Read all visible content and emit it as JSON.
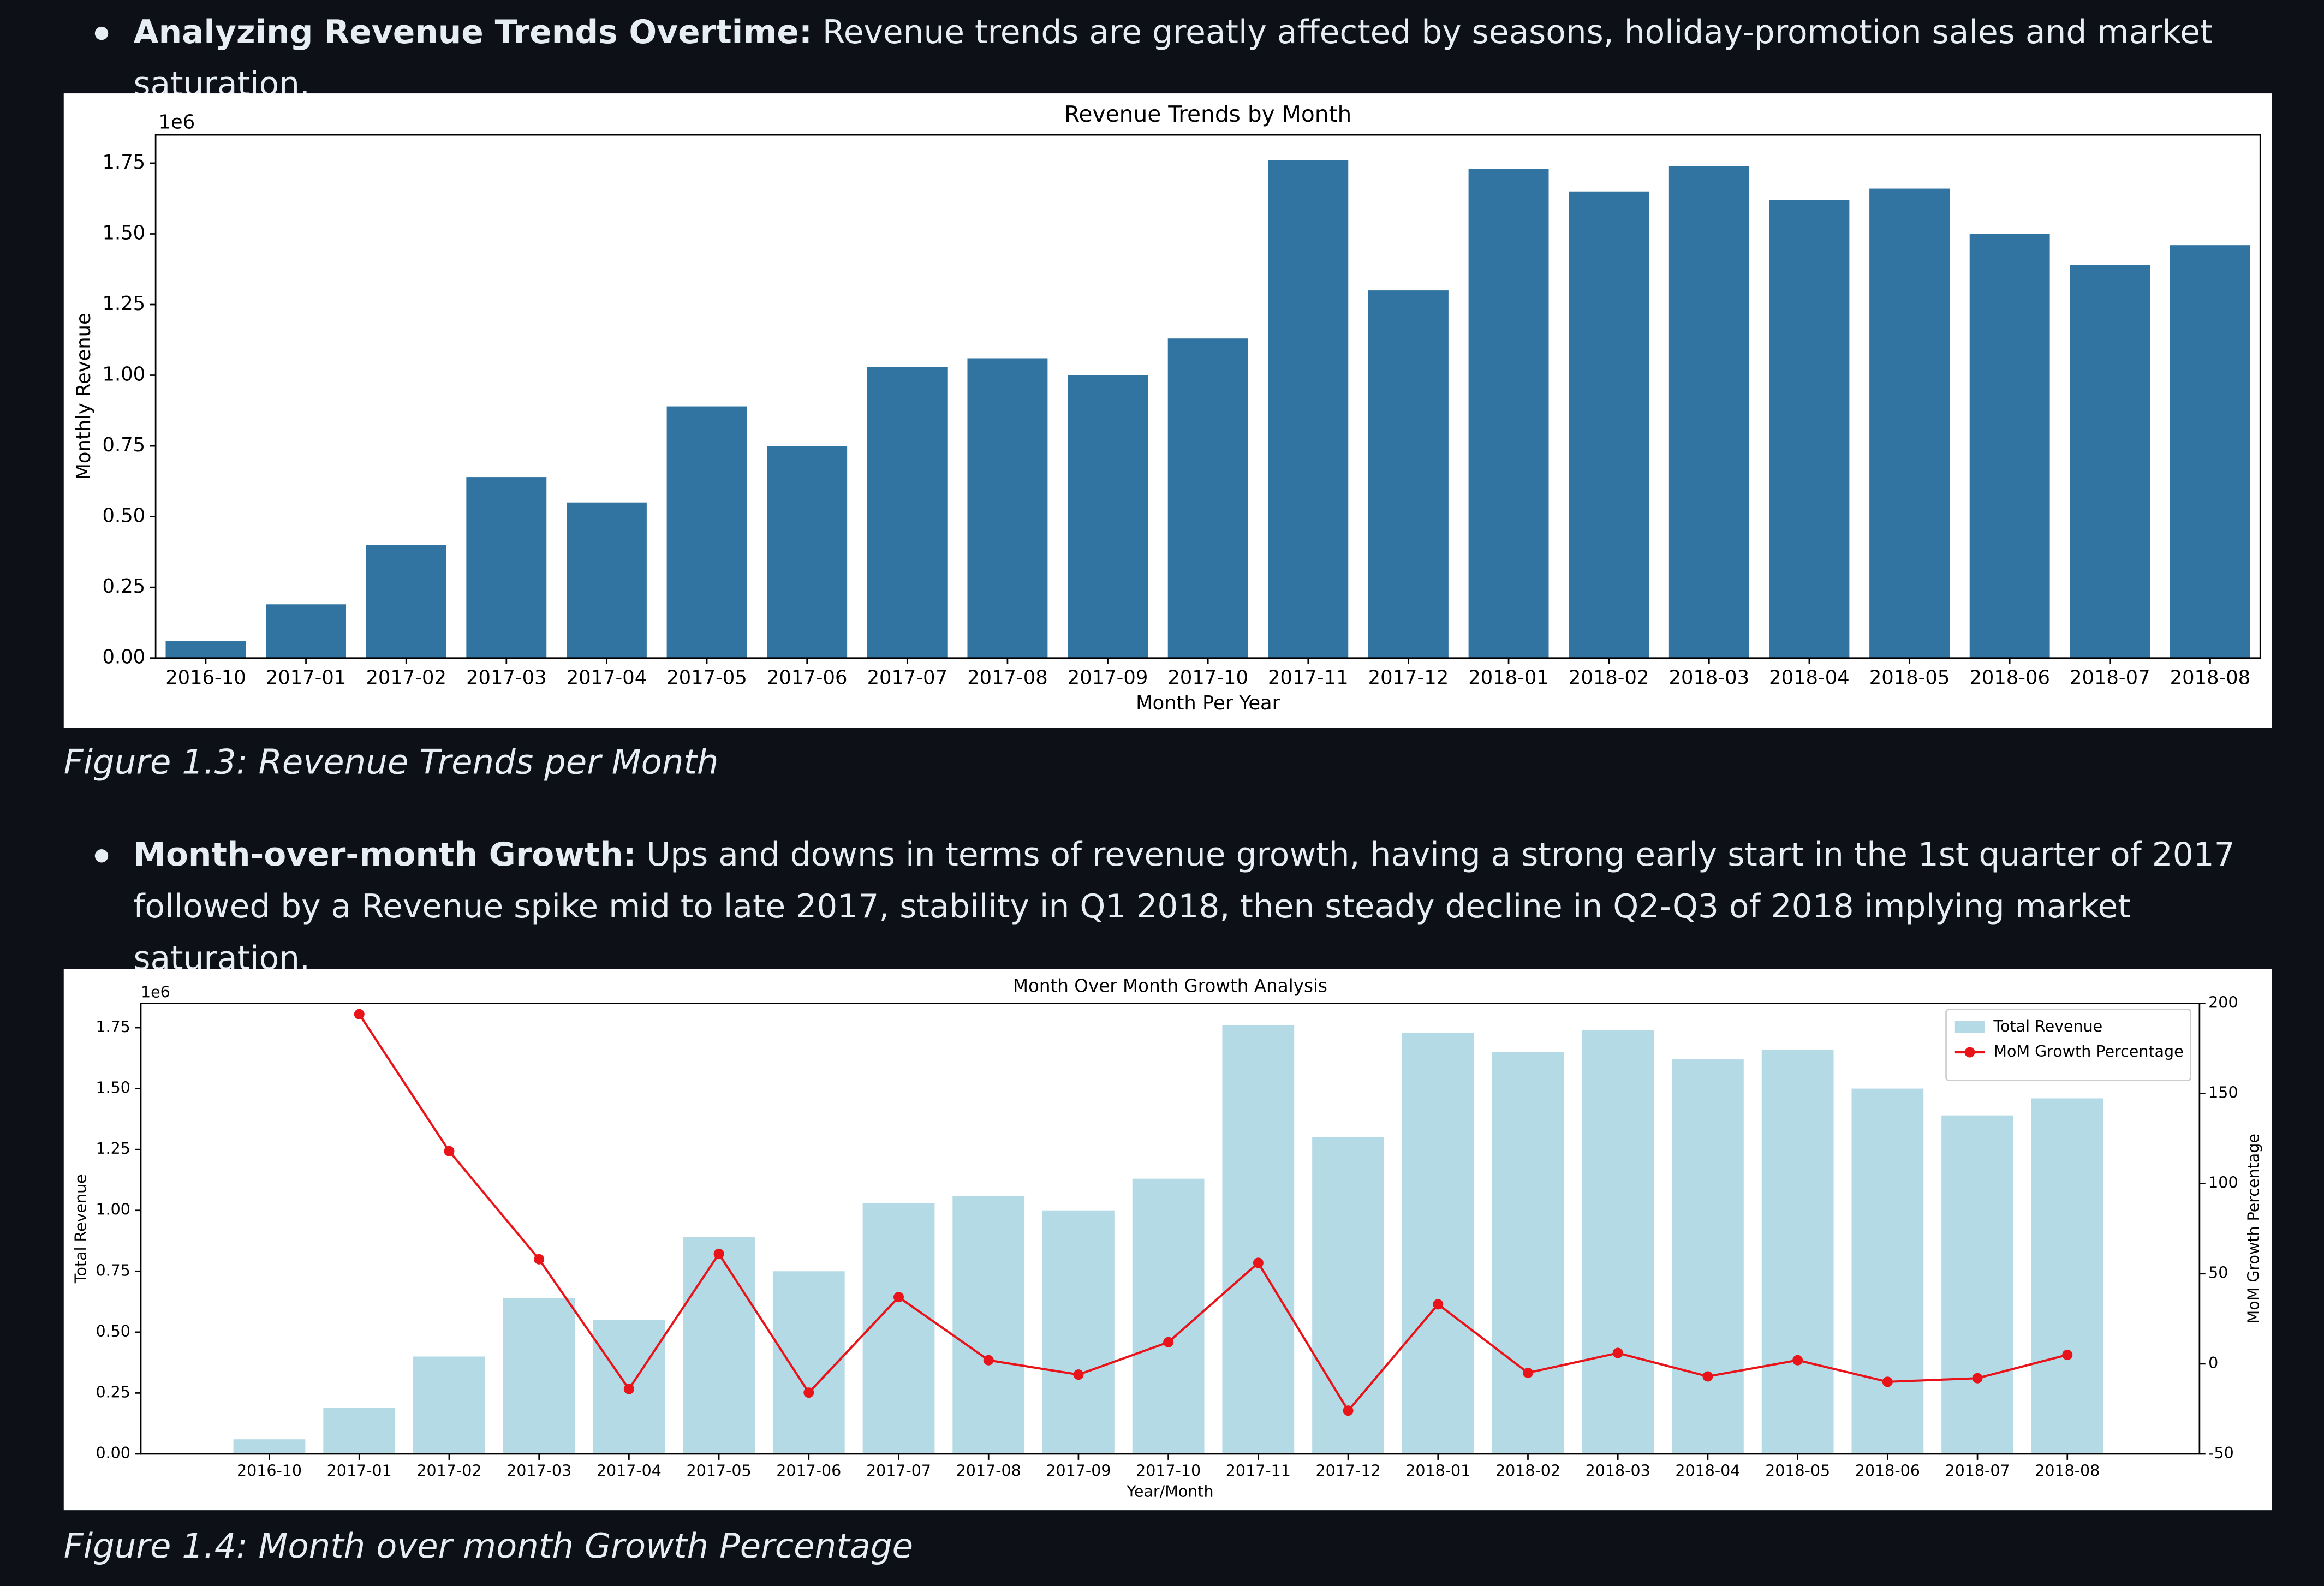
{
  "bullets": [
    {
      "label": "Analyzing Revenue Trends Overtime:",
      "text": "Revenue trends are greatly affected by seasons, holiday-promotion sales and market saturation."
    },
    {
      "label": "Month-over-month Growth:",
      "text": "Ups and downs in terms of revenue growth, having a strong early start in the 1st quarter of 2017 followed by a Revenue spike mid to late 2017, stability in Q1 2018, then steady decline in Q2-Q3 of 2018 implying market saturation."
    }
  ],
  "captions": [
    "Figure 1.3: Revenue Trends per Month",
    "Figure 1.4: Month over month Growth Percentage"
  ],
  "chart_data": [
    {
      "type": "bar",
      "title": "Revenue Trends by Month",
      "x_label": "Month Per Year",
      "y_label": "Monthly Revenue",
      "y_offset_label": "1e6",
      "categories": [
        "2016-10",
        "2017-01",
        "2017-02",
        "2017-03",
        "2017-04",
        "2017-05",
        "2017-06",
        "2017-07",
        "2017-08",
        "2017-09",
        "2017-10",
        "2017-11",
        "2017-12",
        "2018-01",
        "2018-02",
        "2018-03",
        "2018-04",
        "2018-05",
        "2018-06",
        "2018-07",
        "2018-08"
      ],
      "values": [
        0.06,
        0.19,
        0.4,
        0.64,
        0.55,
        0.89,
        0.75,
        1.03,
        1.06,
        1.0,
        1.13,
        1.76,
        1.3,
        1.73,
        1.65,
        1.74,
        1.62,
        1.66,
        1.5,
        1.39,
        1.46
      ],
      "color": "#3274a1",
      "ylim": [
        0,
        1.85
      ],
      "yticks": [
        {
          "value": 0,
          "label": "0.00"
        },
        {
          "value": 0.25,
          "label": "0.25"
        },
        {
          "value": 0.5,
          "label": "0.50"
        },
        {
          "value": 0.75,
          "label": "0.75"
        },
        {
          "value": 1,
          "label": "1.00"
        },
        {
          "value": 1.25,
          "label": "1.25"
        },
        {
          "value": 1.5,
          "label": "1.50"
        },
        {
          "value": 1.75,
          "label": "1.75"
        }
      ],
      "grid": false
    },
    {
      "type": "bar+line",
      "title": "Month Over Month Growth Analysis",
      "x_label": "Year/Month",
      "y_label": "Total Revenue",
      "y2_label": "MoM Growth Percentage",
      "y_offset_label": "1e6",
      "categories": [
        "2016-10",
        "2017-01",
        "2017-02",
        "2017-03",
        "2017-04",
        "2017-05",
        "2017-06",
        "2017-07",
        "2017-08",
        "2017-09",
        "2017-10",
        "2017-11",
        "2017-12",
        "2018-01",
        "2018-02",
        "2018-03",
        "2018-04",
        "2018-05",
        "2018-06",
        "2018-07",
        "2018-08"
      ],
      "series": [
        {
          "name": "Total Revenue",
          "type": "bar",
          "color": "#b4dae6",
          "values": [
            0.06,
            0.19,
            0.4,
            0.64,
            0.55,
            0.89,
            0.75,
            1.03,
            1.06,
            1.0,
            1.13,
            1.76,
            1.3,
            1.73,
            1.65,
            1.74,
            1.62,
            1.66,
            1.5,
            1.39,
            1.46
          ]
        },
        {
          "name": "MoM Growth Percentage",
          "type": "line",
          "color": "#e8141a",
          "axis": "y2",
          "values": [
            null,
            194,
            118,
            58,
            -14,
            61,
            -16,
            37,
            2,
            -6,
            12,
            56,
            -26,
            33,
            -5,
            6,
            -7,
            2,
            -10,
            -8,
            5
          ]
        }
      ],
      "ylim": [
        0,
        1.85
      ],
      "yticks": [
        {
          "value": 0,
          "label": "0.00"
        },
        {
          "value": 0.25,
          "label": "0.25"
        },
        {
          "value": 0.5,
          "label": "0.50"
        },
        {
          "value": 0.75,
          "label": "0.75"
        },
        {
          "value": 1,
          "label": "1.00"
        },
        {
          "value": 1.25,
          "label": "1.25"
        },
        {
          "value": 1.5,
          "label": "1.50"
        },
        {
          "value": 1.75,
          "label": "1.75"
        }
      ],
      "y2lim": [
        -50,
        200
      ],
      "y2ticks": [
        -50,
        0,
        50,
        100,
        150,
        200
      ],
      "legend": "upper right",
      "grid": false
    }
  ]
}
